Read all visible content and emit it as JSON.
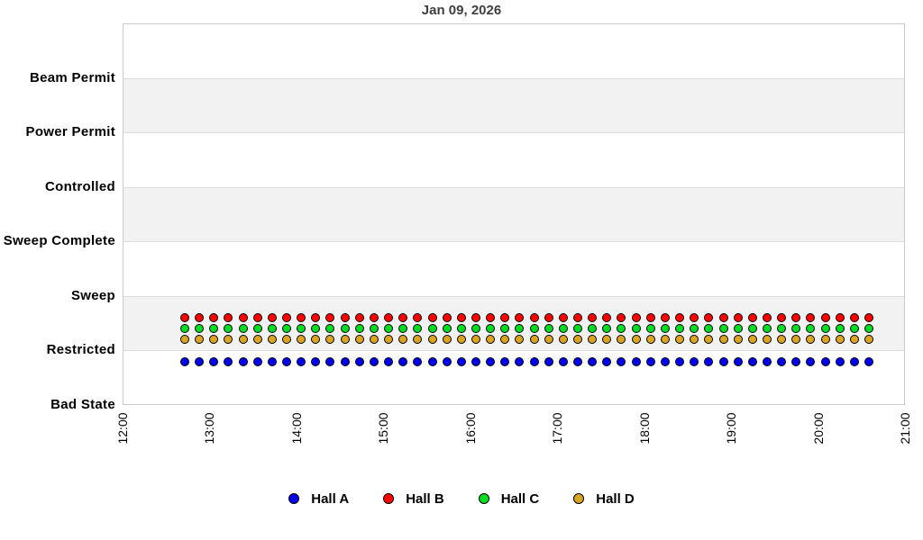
{
  "chart_data": {
    "type": "scatter",
    "title": "Jan 09, 2026",
    "x_axis": {
      "tick_labels": [
        "12:00",
        "13:00",
        "14:00",
        "15:00",
        "16:00",
        "17:00",
        "18:00",
        "19:00",
        "20:00",
        "21:00"
      ],
      "range": [
        "12:00",
        "21:00"
      ],
      "label_rotation_deg": -90
    },
    "y_axis": {
      "categories_top_to_bottom": [
        "Beam Permit",
        "Power Permit",
        "Controlled",
        "Sweep Complete",
        "Sweep",
        "Restricted",
        "Bad State"
      ]
    },
    "background": {
      "stripe_color": "#f2f2f2",
      "gridline_color": "#dcdcdc",
      "plot_border_color": "#cccccc",
      "page_color": "#ffffff"
    },
    "marker": {
      "shape": "circle",
      "outline_color": "#000000"
    },
    "legend": {
      "position": "bottom",
      "entries": [
        {
          "label": "Hall A",
          "color": "#0000EE"
        },
        {
          "label": "Hall B",
          "color": "#FF0000"
        },
        {
          "label": "Hall C",
          "color": "#00DD22"
        },
        {
          "label": "Hall D",
          "color": "#DAA520"
        }
      ]
    },
    "times": [
      "12:40",
      "12:50",
      "13:00",
      "13:10",
      "13:20",
      "13:30",
      "13:40",
      "13:50",
      "14:00",
      "14:10",
      "14:20",
      "14:30",
      "14:40",
      "14:50",
      "15:00",
      "15:10",
      "15:20",
      "15:30",
      "15:40",
      "15:50",
      "16:00",
      "16:10",
      "16:20",
      "16:30",
      "16:40",
      "16:50",
      "17:00",
      "17:10",
      "17:20",
      "17:30",
      "17:40",
      "17:50",
      "18:00",
      "18:10",
      "18:20",
      "18:30",
      "18:40",
      "18:50",
      "19:00",
      "19:10",
      "19:20",
      "19:30",
      "19:40",
      "19:50",
      "20:00",
      "20:10",
      "20:20",
      "20:30"
    ],
    "series": [
      {
        "name": "Hall A",
        "color": "#0000EE",
        "jitter_offset_category_units": -0.2,
        "values": [
          "Restricted",
          "Restricted",
          "Restricted",
          "Restricted",
          "Restricted",
          "Restricted",
          "Restricted",
          "Restricted",
          "Restricted",
          "Restricted",
          "Restricted",
          "Restricted",
          "Restricted",
          "Restricted",
          "Restricted",
          "Restricted",
          "Restricted",
          "Restricted",
          "Restricted",
          "Restricted",
          "Restricted",
          "Restricted",
          "Restricted",
          "Restricted",
          "Restricted",
          "Restricted",
          "Restricted",
          "Restricted",
          "Restricted",
          "Restricted",
          "Restricted",
          "Restricted",
          "Restricted",
          "Restricted",
          "Restricted",
          "Restricted",
          "Restricted",
          "Restricted",
          "Restricted",
          "Restricted",
          "Restricted",
          "Restricted",
          "Restricted",
          "Restricted",
          "Restricted",
          "Restricted",
          "Restricted",
          "Restricted"
        ]
      },
      {
        "name": "Hall B",
        "color": "#FF0000",
        "jitter_offset_category_units": 0.6,
        "values": [
          "Restricted",
          "Restricted",
          "Restricted",
          "Restricted",
          "Restricted",
          "Restricted",
          "Restricted",
          "Restricted",
          "Restricted",
          "Restricted",
          "Restricted",
          "Restricted",
          "Restricted",
          "Restricted",
          "Restricted",
          "Restricted",
          "Restricted",
          "Restricted",
          "Restricted",
          "Restricted",
          "Restricted",
          "Restricted",
          "Restricted",
          "Restricted",
          "Restricted",
          "Restricted",
          "Restricted",
          "Restricted",
          "Restricted",
          "Restricted",
          "Restricted",
          "Restricted",
          "Restricted",
          "Restricted",
          "Restricted",
          "Restricted",
          "Restricted",
          "Restricted",
          "Restricted",
          "Restricted",
          "Restricted",
          "Restricted",
          "Restricted",
          "Restricted",
          "Restricted",
          "Restricted",
          "Restricted",
          "Restricted"
        ]
      },
      {
        "name": "Hall C",
        "color": "#00DD22",
        "jitter_offset_category_units": 0.4,
        "values": [
          "Restricted",
          "Restricted",
          "Restricted",
          "Restricted",
          "Restricted",
          "Restricted",
          "Restricted",
          "Restricted",
          "Restricted",
          "Restricted",
          "Restricted",
          "Restricted",
          "Restricted",
          "Restricted",
          "Restricted",
          "Restricted",
          "Restricted",
          "Restricted",
          "Restricted",
          "Restricted",
          "Restricted",
          "Restricted",
          "Restricted",
          "Restricted",
          "Restricted",
          "Restricted",
          "Restricted",
          "Restricted",
          "Restricted",
          "Restricted",
          "Restricted",
          "Restricted",
          "Restricted",
          "Restricted",
          "Restricted",
          "Restricted",
          "Restricted",
          "Restricted",
          "Restricted",
          "Restricted",
          "Restricted",
          "Restricted",
          "Restricted",
          "Restricted",
          "Restricted",
          "Restricted",
          "Restricted",
          "Restricted"
        ]
      },
      {
        "name": "Hall D",
        "color": "#DAA520",
        "jitter_offset_category_units": 0.2,
        "values": [
          "Restricted",
          "Restricted",
          "Restricted",
          "Restricted",
          "Restricted",
          "Restricted",
          "Restricted",
          "Restricted",
          "Restricted",
          "Restricted",
          "Restricted",
          "Restricted",
          "Restricted",
          "Restricted",
          "Restricted",
          "Restricted",
          "Restricted",
          "Restricted",
          "Restricted",
          "Restricted",
          "Restricted",
          "Restricted",
          "Restricted",
          "Restricted",
          "Restricted",
          "Restricted",
          "Restricted",
          "Restricted",
          "Restricted",
          "Restricted",
          "Restricted",
          "Restricted",
          "Restricted",
          "Restricted",
          "Restricted",
          "Restricted",
          "Restricted",
          "Restricted",
          "Restricted",
          "Restricted",
          "Restricted",
          "Restricted",
          "Restricted",
          "Restricted",
          "Restricted",
          "Restricted",
          "Restricted",
          "Restricted"
        ]
      }
    ]
  }
}
